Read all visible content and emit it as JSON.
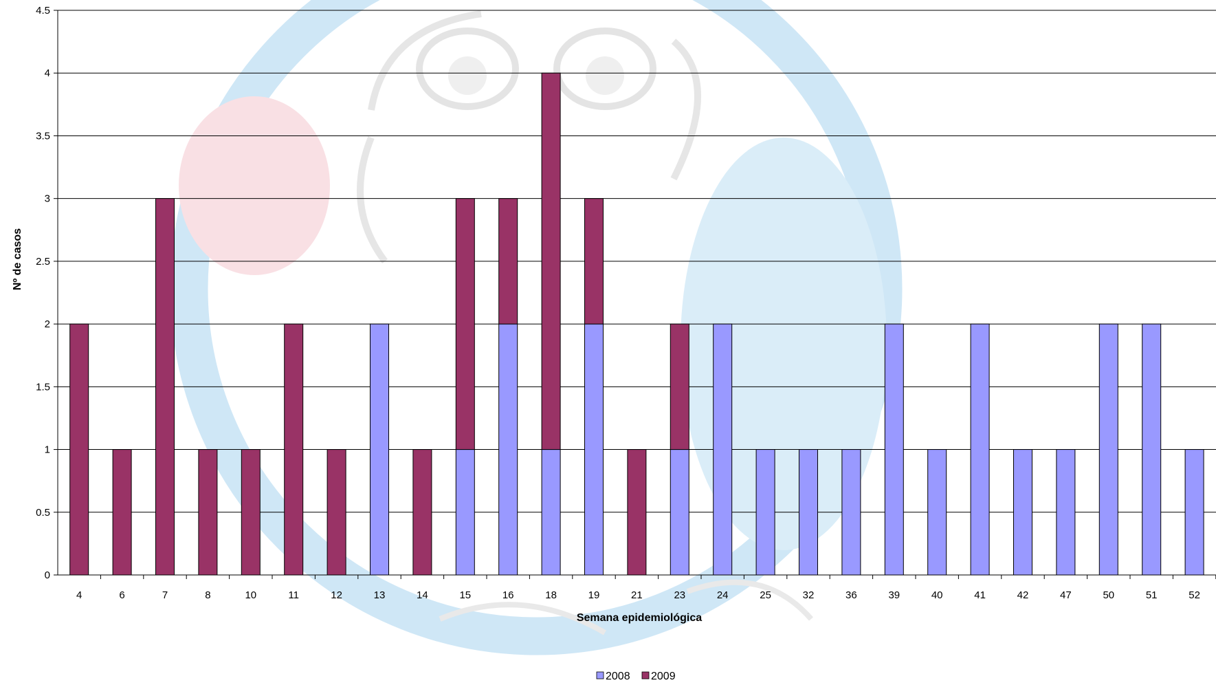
{
  "chart_data": {
    "type": "bar",
    "stacked": true,
    "title": "",
    "xlabel": "Semana epidemiológica",
    "ylabel": "Nº de casos",
    "ylim": [
      0,
      4.5
    ],
    "yticks": [
      "0",
      "0.5",
      "1",
      "1.5",
      "2",
      "2.5",
      "3",
      "3.5",
      "4",
      "4.5"
    ],
    "ytick_values": [
      0,
      0.5,
      1,
      1.5,
      2,
      2.5,
      3,
      3.5,
      4,
      4.5
    ],
    "grid": true,
    "legend_position": "bottom",
    "categories": [
      "4",
      "6",
      "7",
      "8",
      "10",
      "11",
      "12",
      "13",
      "14",
      "15",
      "16",
      "18",
      "19",
      "21",
      "23",
      "24",
      "25",
      "32",
      "36",
      "39",
      "40",
      "41",
      "42",
      "47",
      "50",
      "51",
      "52"
    ],
    "series": [
      {
        "name": "2008",
        "color": "#9999FF",
        "values": [
          0,
          0,
          0,
          0,
          0,
          0,
          0,
          2,
          0,
          1,
          2,
          1,
          2,
          0,
          1,
          2,
          1,
          1,
          1,
          2,
          1,
          2,
          1,
          1,
          2,
          2,
          1
        ]
      },
      {
        "name": "2009",
        "color": "#993366",
        "values": [
          2,
          1,
          3,
          1,
          1,
          2,
          1,
          0,
          1,
          2,
          1,
          3,
          1,
          1,
          1,
          0,
          0,
          0,
          0,
          0,
          0,
          0,
          0,
          0,
          0,
          0,
          0
        ]
      }
    ]
  }
}
